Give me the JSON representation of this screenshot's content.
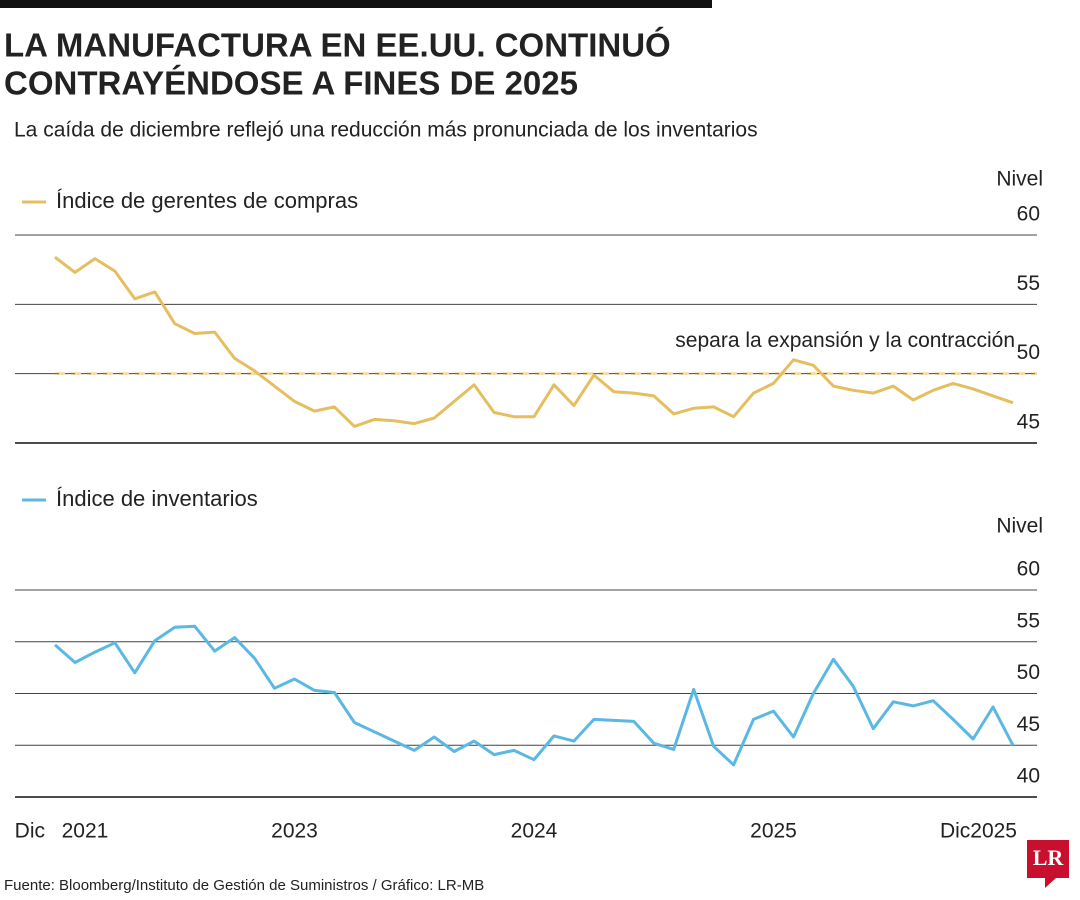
{
  "title": [
    "LA MANUFACTURA EN EE.UU. CONTINUÓ",
    "CONTRAYÉNDOSE A FINES DE 2025"
  ],
  "subtitle": "La caída de diciembre reflejó una reducción más pronunciada de los inventarios",
  "source": "Fuente: Bloomberg/Instituto de Gestión de Suministros / Gráfico: LR-MB",
  "logo": "LR",
  "chart_data": [
    {
      "type": "line",
      "ylabel": "Nivel",
      "ylim": [
        45,
        60
      ],
      "yticks": [
        45,
        50,
        55,
        60
      ],
      "grid": true,
      "reference": {
        "value": 50,
        "label": "separa la expansión y la contracción"
      },
      "series": [
        {
          "name": "Índice de gerentes de compras",
          "color": "#e5be5f",
          "values": [
            58.4,
            57.3,
            58.3,
            57.4,
            55.4,
            55.9,
            53.6,
            52.9,
            53.0,
            51.1,
            50.2,
            49.1,
            48.0,
            47.3,
            47.6,
            46.2,
            46.7,
            46.6,
            46.4,
            46.8,
            48.0,
            49.2,
            47.2,
            46.9,
            46.9,
            49.2,
            47.7,
            49.9,
            48.7,
            48.6,
            48.4,
            47.1,
            47.5,
            47.6,
            46.9,
            48.6,
            49.3,
            51.0,
            50.6,
            49.1,
            48.8,
            48.6,
            49.1,
            48.1,
            48.8,
            49.3,
            48.9,
            48.4,
            47.9
          ]
        }
      ]
    },
    {
      "type": "line",
      "ylabel": "Nivel",
      "ylim": [
        40,
        60
      ],
      "yticks": [
        40,
        45,
        50,
        55,
        60
      ],
      "grid": true,
      "categories": [
        "Dic",
        "2021",
        null,
        null,
        null,
        null,
        null,
        null,
        null,
        null,
        null,
        null,
        "2023",
        null,
        null,
        null,
        null,
        null,
        null,
        null,
        null,
        null,
        null,
        null,
        "2024",
        null,
        null,
        null,
        null,
        null,
        null,
        null,
        null,
        null,
        null,
        null,
        "2025",
        null,
        null,
        null,
        null,
        null,
        null,
        null,
        null,
        null,
        null,
        null,
        "Dic2025"
      ],
      "series": [
        {
          "name": "Índice de inventarios",
          "color": "#5bb8e3",
          "values": [
            54.7,
            53.0,
            54.0,
            54.9,
            52.0,
            55.1,
            56.4,
            56.5,
            54.1,
            55.4,
            53.4,
            50.5,
            51.4,
            50.3,
            50.1,
            47.2,
            46.3,
            45.4,
            44.5,
            45.8,
            44.4,
            45.4,
            44.1,
            44.5,
            43.6,
            45.9,
            45.4,
            47.5,
            47.4,
            47.3,
            45.2,
            44.6,
            50.4,
            44.9,
            43.1,
            47.5,
            48.3,
            45.8,
            50.0,
            53.3,
            50.7,
            46.6,
            49.2,
            48.8,
            49.3,
            47.5,
            45.6,
            48.7,
            45.0
          ]
        }
      ]
    }
  ]
}
